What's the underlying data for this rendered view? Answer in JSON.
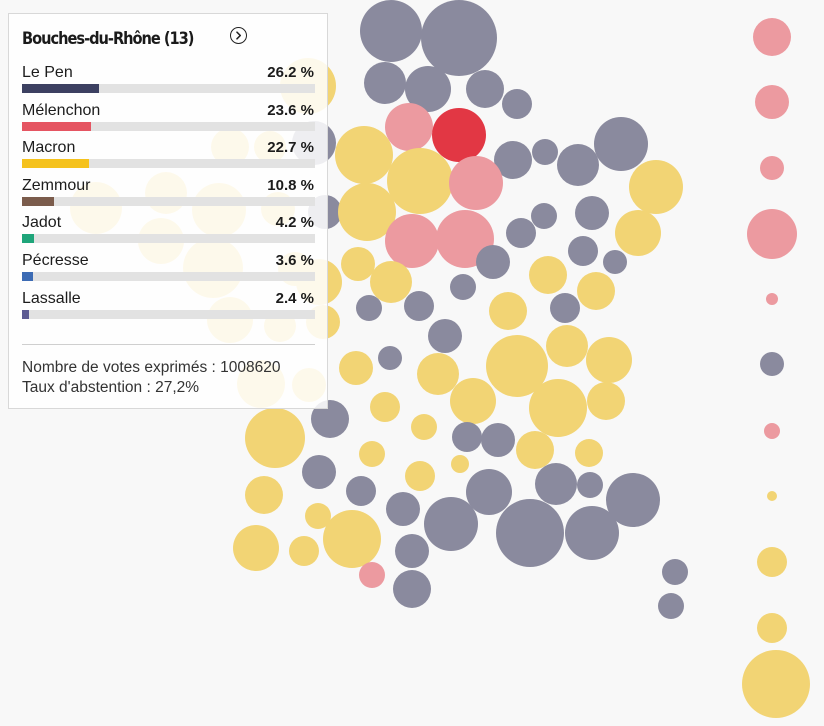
{
  "colors": {
    "le_pen": "#8a8a9e",
    "le_pen_bar": "#3c4061",
    "melenchon": "#ec9aa0",
    "melenchon_strong": "#e23744",
    "melenchon_bar": "#e55562",
    "macron": "#f2d474",
    "macron_bar": "#f5c21d",
    "zemmour_bar": "#7b5c4c",
    "jadot_bar": "#1fa57a",
    "pecresse_bar": "#3c6bb4",
    "lassalle_bar": "#5d5b92"
  },
  "tooltip": {
    "title": "Bouches-du-Rhône (13)",
    "arrow_icon": "chevron-right-circle-icon",
    "candidates": [
      {
        "name": "Le Pen",
        "pct_label": "26.2 %",
        "share": 26.2,
        "color": "#3c4061"
      },
      {
        "name": "Mélenchon",
        "pct_label": "23.6 %",
        "share": 23.6,
        "color": "#e55562"
      },
      {
        "name": "Macron",
        "pct_label": "22.7 %",
        "share": 22.7,
        "color": "#f5c21d"
      },
      {
        "name": "Zemmour",
        "pct_label": "10.8 %",
        "share": 10.8,
        "color": "#7b5c4c"
      },
      {
        "name": "Jadot",
        "pct_label": "4.2 %",
        "share": 4.2,
        "color": "#1fa57a"
      },
      {
        "name": "Pécresse",
        "pct_label": "3.6 %",
        "share": 3.6,
        "color": "#3c6bb4"
      },
      {
        "name": "Lassalle",
        "pct_label": "2.4 %",
        "share": 2.4,
        "color": "#5d5b92"
      }
    ],
    "votes_line": "Nombre de votes exprimés : 1008620",
    "abstention_line": "Taux d'abstention : 27,2%"
  },
  "map": {
    "bar_scale_max_share": 100
  }
}
